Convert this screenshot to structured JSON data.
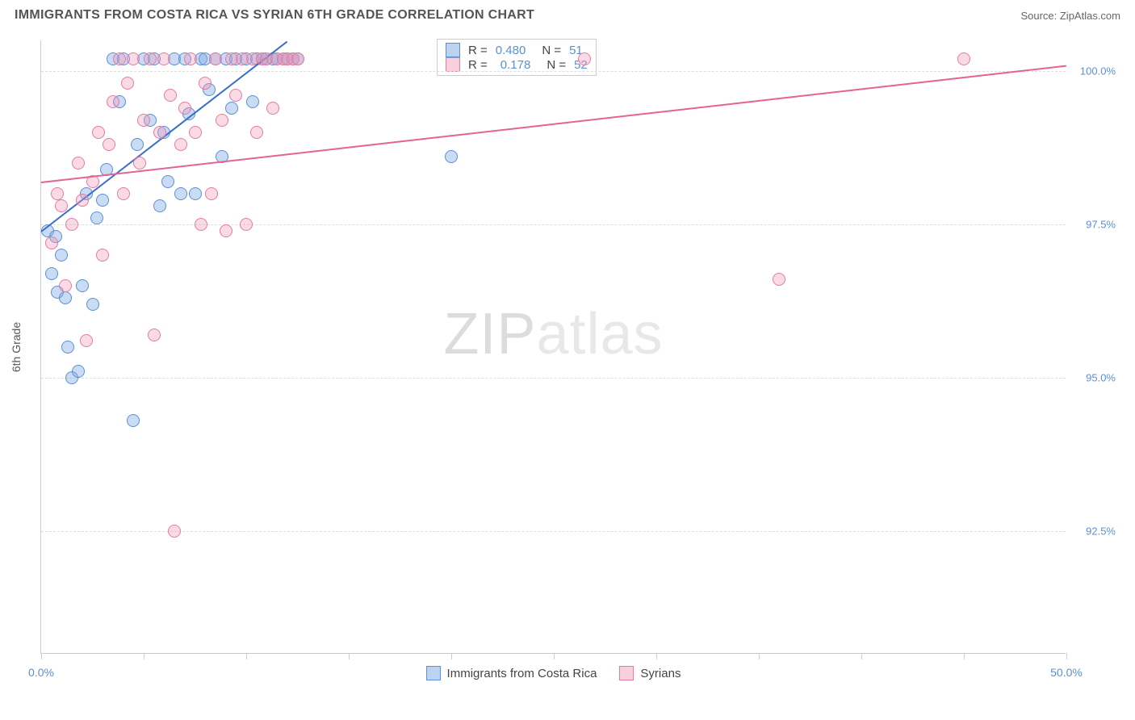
{
  "header": {
    "title": "IMMIGRANTS FROM COSTA RICA VS SYRIAN 6TH GRADE CORRELATION CHART",
    "source_prefix": "Source: ",
    "source_name": "ZipAtlas.com"
  },
  "chart": {
    "type": "scatter",
    "ylabel": "6th Grade",
    "background_color": "#ffffff",
    "grid_color": "#dddddd",
    "axis_color": "#cccccc",
    "xlim": [
      0,
      50
    ],
    "ylim": [
      90.5,
      100.5
    ],
    "xticks": [
      0,
      5,
      10,
      15,
      20,
      25,
      30,
      35,
      40,
      45,
      50
    ],
    "xtick_labels_visible": {
      "0": "0.0%",
      "50": "50.0%"
    },
    "yticks": [
      92.5,
      95.0,
      97.5,
      100.0
    ],
    "ytick_labels": [
      "92.5%",
      "95.0%",
      "97.5%",
      "100.0%"
    ],
    "marker_size": 16,
    "line_width": 2,
    "series": [
      {
        "name": "Immigrants from Costa Rica",
        "color_fill": "rgba(122,168,226,0.4)",
        "color_stroke": "#5b8fd6",
        "R": "0.480",
        "N": "51",
        "trendline": {
          "x1": 0,
          "y1": 97.4,
          "x2": 12,
          "y2": 100.5,
          "color": "#3a6fc7"
        },
        "points": [
          [
            0.3,
            97.4
          ],
          [
            0.5,
            96.7
          ],
          [
            0.7,
            97.3
          ],
          [
            0.8,
            96.4
          ],
          [
            1.0,
            97.0
          ],
          [
            1.2,
            96.3
          ],
          [
            1.3,
            95.5
          ],
          [
            1.5,
            95.0
          ],
          [
            1.8,
            95.1
          ],
          [
            2.0,
            96.5
          ],
          [
            2.2,
            98.0
          ],
          [
            2.5,
            96.2
          ],
          [
            2.7,
            97.6
          ],
          [
            3.0,
            97.9
          ],
          [
            3.2,
            98.4
          ],
          [
            3.5,
            100.2
          ],
          [
            3.8,
            99.5
          ],
          [
            4.0,
            100.2
          ],
          [
            4.5,
            94.3
          ],
          [
            4.7,
            98.8
          ],
          [
            5.0,
            100.2
          ],
          [
            5.3,
            99.2
          ],
          [
            5.5,
            100.2
          ],
          [
            5.8,
            97.8
          ],
          [
            6.0,
            99.0
          ],
          [
            6.2,
            98.2
          ],
          [
            6.5,
            100.2
          ],
          [
            6.8,
            98.0
          ],
          [
            7.0,
            100.2
          ],
          [
            7.2,
            99.3
          ],
          [
            7.5,
            98.0
          ],
          [
            7.8,
            100.2
          ],
          [
            8.0,
            100.2
          ],
          [
            8.2,
            99.7
          ],
          [
            8.5,
            100.2
          ],
          [
            8.8,
            98.6
          ],
          [
            9.0,
            100.2
          ],
          [
            9.3,
            99.4
          ],
          [
            9.5,
            100.2
          ],
          [
            10.0,
            100.2
          ],
          [
            10.3,
            99.5
          ],
          [
            10.5,
            100.2
          ],
          [
            10.8,
            100.2
          ],
          [
            11.0,
            100.2
          ],
          [
            11.3,
            100.2
          ],
          [
            11.5,
            100.2
          ],
          [
            11.8,
            100.2
          ],
          [
            12.0,
            100.2
          ],
          [
            12.3,
            100.2
          ],
          [
            12.5,
            100.2
          ],
          [
            20.0,
            98.6
          ]
        ]
      },
      {
        "name": "Syrians",
        "color_fill": "rgba(240,150,180,0.35)",
        "color_stroke": "#e67aa3",
        "R": "0.178",
        "N": "52",
        "trendline": {
          "x1": 0,
          "y1": 98.2,
          "x2": 50,
          "y2": 100.1,
          "color": "#e26394"
        },
        "points": [
          [
            0.5,
            97.2
          ],
          [
            0.8,
            98.0
          ],
          [
            1.0,
            97.8
          ],
          [
            1.2,
            96.5
          ],
          [
            1.5,
            97.5
          ],
          [
            1.8,
            98.5
          ],
          [
            2.0,
            97.9
          ],
          [
            2.2,
            95.6
          ],
          [
            2.5,
            98.2
          ],
          [
            2.8,
            99.0
          ],
          [
            3.0,
            97.0
          ],
          [
            3.3,
            98.8
          ],
          [
            3.5,
            99.5
          ],
          [
            3.8,
            100.2
          ],
          [
            4.0,
            98.0
          ],
          [
            4.2,
            99.8
          ],
          [
            4.5,
            100.2
          ],
          [
            4.8,
            98.5
          ],
          [
            5.0,
            99.2
          ],
          [
            5.3,
            100.2
          ],
          [
            5.5,
            95.7
          ],
          [
            5.8,
            99.0
          ],
          [
            6.0,
            100.2
          ],
          [
            6.3,
            99.6
          ],
          [
            6.5,
            92.5
          ],
          [
            6.8,
            98.8
          ],
          [
            7.0,
            99.4
          ],
          [
            7.3,
            100.2
          ],
          [
            7.5,
            99.0
          ],
          [
            7.8,
            97.5
          ],
          [
            8.0,
            99.8
          ],
          [
            8.3,
            98.0
          ],
          [
            8.5,
            100.2
          ],
          [
            8.8,
            99.2
          ],
          [
            9.0,
            97.4
          ],
          [
            9.3,
            100.2
          ],
          [
            9.5,
            99.6
          ],
          [
            9.8,
            100.2
          ],
          [
            10.0,
            97.5
          ],
          [
            10.3,
            100.2
          ],
          [
            10.5,
            99.0
          ],
          [
            10.8,
            100.2
          ],
          [
            11.0,
            100.2
          ],
          [
            11.3,
            99.4
          ],
          [
            11.5,
            100.2
          ],
          [
            11.8,
            100.2
          ],
          [
            12.0,
            100.2
          ],
          [
            12.3,
            100.2
          ],
          [
            12.5,
            100.2
          ],
          [
            26.5,
            100.2
          ],
          [
            36.0,
            96.6
          ],
          [
            45.0,
            100.2
          ]
        ]
      }
    ]
  },
  "legend_top": {
    "r_label": "R =",
    "n_label": "N ="
  },
  "watermark": {
    "zip": "ZIP",
    "rest": "atlas"
  }
}
